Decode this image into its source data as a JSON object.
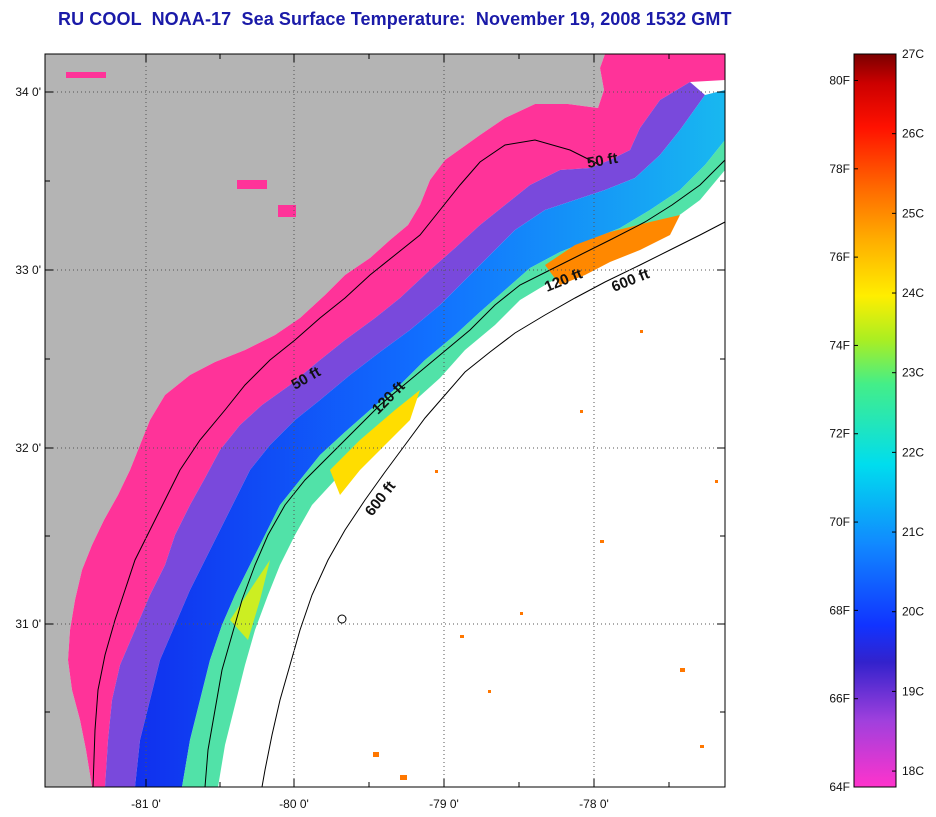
{
  "title": "RU COOL  NOAA-17  Sea Surface Temperature:  November 19, 2008 1532 GMT",
  "map": {
    "lat_ticks": [
      "34 0'",
      "33 0'",
      "32 0'",
      "31 0'"
    ],
    "lon_ticks": [
      "-81 0'",
      "-80 0'",
      "-79 0'",
      "-78 0'"
    ],
    "contours": [
      {
        "id": "50ft-north",
        "label": "50 ft"
      },
      {
        "id": "120ft-north",
        "label": "120 ft"
      },
      {
        "id": "600ft-north",
        "label": "600 ft"
      },
      {
        "id": "50ft-mid",
        "label": "50 ft"
      },
      {
        "id": "120ft-mid",
        "label": "120 ft"
      },
      {
        "id": "600ft-mid",
        "label": "600 ft"
      }
    ],
    "colors": {
      "land": "#b4b4b4",
      "water_nodata": "#ffffff",
      "contour": "#000000"
    }
  },
  "colorbar": {
    "fahrenheit": [
      "80F",
      "78F",
      "76F",
      "74F",
      "72F",
      "70F",
      "68F",
      "66F",
      "64F"
    ],
    "celsius": [
      "27C",
      "26C",
      "25C",
      "24C",
      "23C",
      "22C",
      "21C",
      "20C",
      "19C",
      "18C"
    ],
    "stops": [
      {
        "offset": 0.0,
        "color": "#ff33cc"
      },
      {
        "offset": 0.09,
        "color": "#a040dd"
      },
      {
        "offset": 0.17,
        "color": "#3322cc"
      },
      {
        "offset": 0.22,
        "color": "#1133ff"
      },
      {
        "offset": 0.33,
        "color": "#1188ff"
      },
      {
        "offset": 0.44,
        "color": "#00ddee"
      },
      {
        "offset": 0.55,
        "color": "#44ee88"
      },
      {
        "offset": 0.61,
        "color": "#aaee22"
      },
      {
        "offset": 0.67,
        "color": "#ffee00"
      },
      {
        "offset": 0.75,
        "color": "#ffaa00"
      },
      {
        "offset": 0.82,
        "color": "#ff6600"
      },
      {
        "offset": 0.9,
        "color": "#ff1100"
      },
      {
        "offset": 0.96,
        "color": "#cc0000"
      },
      {
        "offset": 1.0,
        "color": "#7a0000"
      }
    ]
  }
}
